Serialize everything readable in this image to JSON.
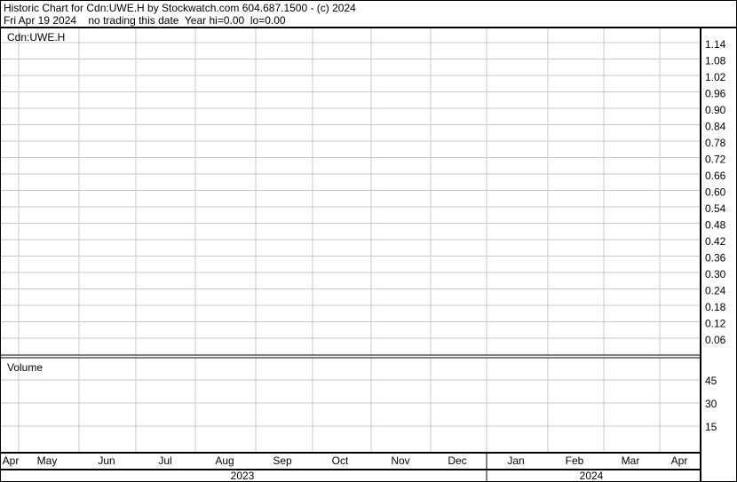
{
  "header": {
    "title": "Historic Chart for Cdn:UWE.H by Stockwatch.com 604.687.1500 - (c) 2024",
    "status": "Fri Apr 19 2024    no trading this date  Year hi=0.00  lo=0.00"
  },
  "chart_data": [
    {
      "type": "line",
      "title": "Cdn:UWE.H",
      "ylim": [
        0,
        1.17
      ],
      "y_ticks": [
        "1.14",
        "1.08",
        "1.02",
        "0.96",
        "0.90",
        "0.84",
        "0.78",
        "0.72",
        "0.66",
        "0.60",
        "0.54",
        "0.48",
        "0.42",
        "0.36",
        "0.30",
        "0.24",
        "0.18",
        "0.12",
        "0.06"
      ],
      "x_ticks": [
        "Apr",
        "May",
        "Jun",
        "Jul",
        "Aug",
        "Sep",
        "Oct",
        "Nov",
        "Dec",
        "Jan",
        "Feb",
        "Mar",
        "Apr"
      ],
      "years": [
        "2023",
        "2024"
      ],
      "series": [],
      "grid": true
    },
    {
      "type": "bar",
      "title": "Volume",
      "y_ticks": [
        "45",
        "30",
        "15"
      ],
      "series": [],
      "grid": true
    }
  ],
  "colors": {
    "grid": "#c8c8c8",
    "border": "#000000"
  }
}
